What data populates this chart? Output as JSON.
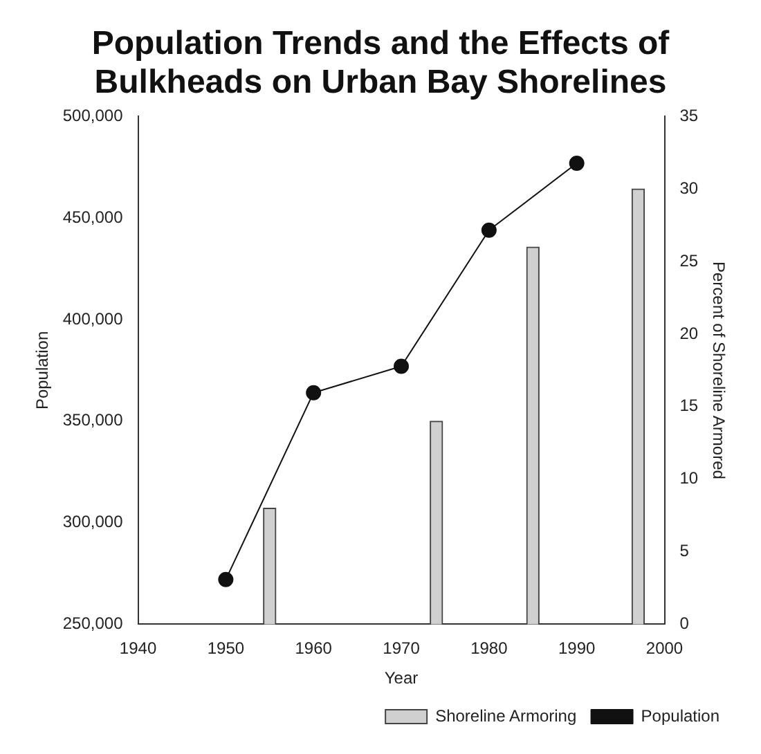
{
  "chart_data": {
    "type": "bar",
    "title": "Population Trends and the Effects of Bulkheads on Urban Bay Shorelines",
    "xlabel": "Year",
    "ylabel": "Population",
    "y2label": "Percent of Shoreline Armored",
    "xlim": [
      1940,
      2000
    ],
    "xticks": [
      1940,
      1950,
      1960,
      1970,
      1980,
      1990,
      2000
    ],
    "ylim": [
      250000,
      500000
    ],
    "yticks": [
      {
        "value": 250000,
        "label": "250,000"
      },
      {
        "value": 300000,
        "label": "300,000"
      },
      {
        "value": 350000,
        "label": "350,000"
      },
      {
        "value": 400000,
        "label": "400,000"
      },
      {
        "value": 450000,
        "label": "450,000"
      },
      {
        "value": 500000,
        "label": "500,000"
      }
    ],
    "y2lim": [
      0,
      35
    ],
    "y2ticks": [
      0,
      5,
      10,
      15,
      20,
      25,
      30,
      35
    ],
    "series": [
      {
        "name": "Shoreline Armoring",
        "axis": "y2",
        "color": "#d0d0d0",
        "x": [
          1955,
          1974,
          1985,
          1997
        ],
        "values": [
          8,
          14,
          26,
          30
        ]
      },
      {
        "name": "Population",
        "type": "line",
        "axis": "y",
        "color": "#111111",
        "x": [
          1950,
          1960,
          1970,
          1980,
          1990
        ],
        "values": [
          272000,
          364000,
          377000,
          444000,
          477000
        ],
        "marker": "circle"
      }
    ],
    "legend": "bottom right",
    "grid": false
  }
}
